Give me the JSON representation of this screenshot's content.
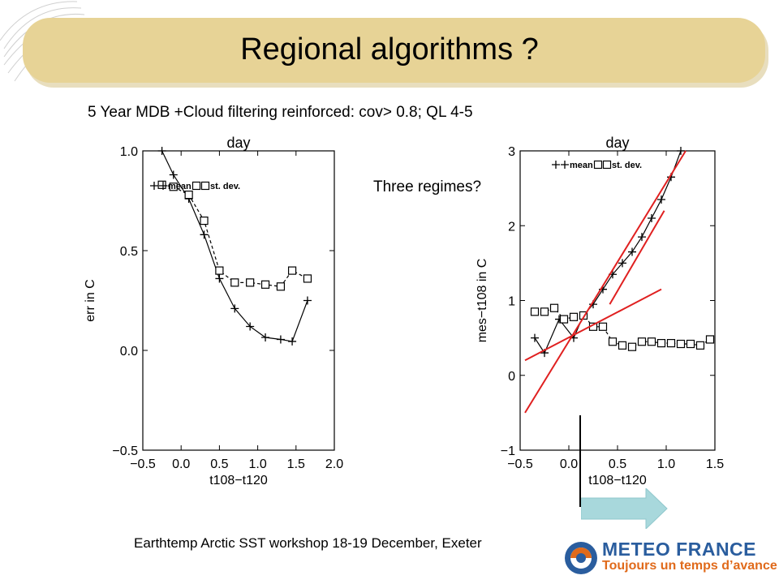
{
  "slide": {
    "title": "Regional algorithms ?",
    "subtitle": "5 Year MDB +Cloud filtering reinforced: cov> 0.8; QL 4-5",
    "annotation": "Three regimes?",
    "footer": "Earthtemp Arctic SST workshop 18-19 December, Exeter",
    "logo_name": "METEO FRANCE",
    "logo_tagline": "Toujours un temps d’avance"
  },
  "colors": {
    "title_band": "#e7d396",
    "fit_lines": "#e02020",
    "arrow": "#a8d8dc",
    "logo_blue": "#2a5d9e",
    "logo_orange": "#e06a1b"
  },
  "chart_data": [
    {
      "type": "line",
      "title": "day",
      "xlabel": "t108−t120",
      "ylabel": "err in C",
      "xlim": [
        -0.5,
        2.0
      ],
      "ylim": [
        -0.5,
        1.0
      ],
      "xticks": [
        "−0.5",
        "0.0",
        "0.5",
        "1.0",
        "1.5",
        "2.0"
      ],
      "yticks": [
        "−0.5",
        "0.0",
        "0.5",
        "1.0"
      ],
      "legend": [
        "mean",
        "st. dev."
      ],
      "series": [
        {
          "name": "mean",
          "marker": "plus",
          "x": [
            -0.25,
            -0.1,
            0.1,
            0.3,
            0.5,
            0.7,
            0.9,
            1.1,
            1.3,
            1.45,
            1.65
          ],
          "y": [
            1.0,
            0.88,
            0.76,
            0.58,
            0.36,
            0.21,
            0.12,
            0.065,
            0.055,
            0.045,
            0.25
          ]
        },
        {
          "name": "st. dev.",
          "marker": "square",
          "x": [
            -0.25,
            -0.1,
            0.1,
            0.3,
            0.5,
            0.7,
            0.9,
            1.1,
            1.3,
            1.45,
            1.65
          ],
          "y": [
            0.83,
            0.82,
            0.78,
            0.65,
            0.4,
            0.34,
            0.34,
            0.33,
            0.32,
            0.4,
            0.36
          ]
        }
      ]
    },
    {
      "type": "line",
      "title": "day",
      "xlabel": "t108−t120",
      "ylabel": "mes−t108 in C",
      "xlim": [
        -0.5,
        1.5
      ],
      "ylim": [
        -1,
        3
      ],
      "xticks": [
        "−0.5",
        "0.0",
        "0.5",
        "1.0",
        "1.5"
      ],
      "yticks": [
        "−1",
        "0",
        "1",
        "2",
        "3"
      ],
      "legend": [
        "mean",
        "st. dev."
      ],
      "series": [
        {
          "name": "mean",
          "marker": "plus",
          "x": [
            -0.35,
            -0.25,
            -0.1,
            0.05,
            0.15,
            0.25,
            0.35,
            0.45,
            0.55,
            0.65,
            0.75,
            0.85,
            0.95,
            1.05,
            1.15
          ],
          "y": [
            0.5,
            0.3,
            0.75,
            0.5,
            0.8,
            0.95,
            1.15,
            1.35,
            1.5,
            1.65,
            1.85,
            2.1,
            2.35,
            2.65,
            3.0
          ]
        },
        {
          "name": "st. dev.",
          "marker": "square",
          "x": [
            -0.35,
            -0.25,
            -0.15,
            -0.05,
            0.05,
            0.15,
            0.25,
            0.35,
            0.45,
            0.55,
            0.65,
            0.75,
            0.85,
            0.95,
            1.05,
            1.15,
            1.25,
            1.35,
            1.45
          ],
          "y": [
            0.85,
            0.85,
            0.9,
            0.75,
            0.78,
            0.8,
            0.65,
            0.65,
            0.45,
            0.4,
            0.38,
            0.45,
            0.45,
            0.43,
            0.43,
            0.42,
            0.42,
            0.4,
            0.48
          ]
        }
      ],
      "fit_lines": [
        {
          "x": [
            -0.45,
            0.95
          ],
          "y": [
            0.2,
            1.15
          ]
        },
        {
          "x": [
            -0.45,
            1.2
          ],
          "y": [
            -0.5,
            3.0
          ]
        },
        {
          "x": [
            0.42,
            0.98
          ],
          "y": [
            0.95,
            2.2
          ]
        }
      ]
    }
  ]
}
